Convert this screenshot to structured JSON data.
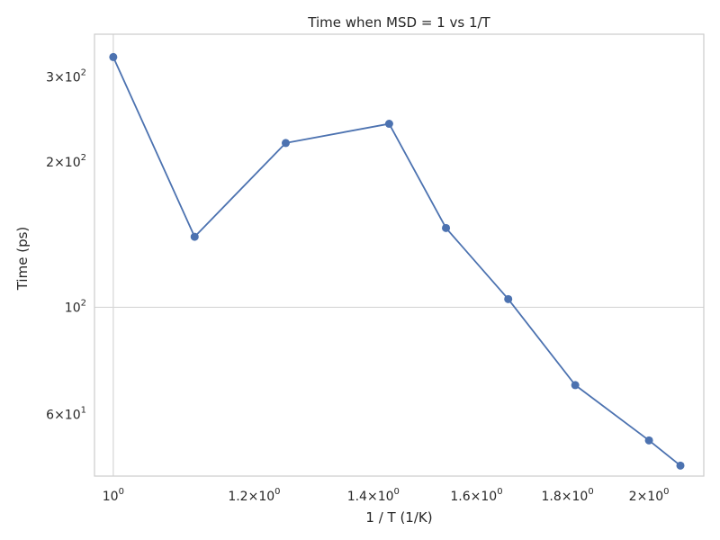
{
  "chart_data": {
    "type": "line",
    "title": "Time when MSD = 1 vs 1/T",
    "xlabel": "1 / T (1/K)",
    "ylabel": "Time (ps)",
    "xscale": "log",
    "yscale": "log",
    "xlim": [
      0.976,
      2.147
    ],
    "ylim": [
      44.7,
      368
    ],
    "grid": "major",
    "xticks": [
      {
        "value": 1.0,
        "mantissa": "",
        "exp": "0"
      },
      {
        "value": 1.2,
        "mantissa": "1.2",
        "exp": "0"
      },
      {
        "value": 1.4,
        "mantissa": "1.4",
        "exp": "0"
      },
      {
        "value": 1.6,
        "mantissa": "1.6",
        "exp": "0"
      },
      {
        "value": 1.8,
        "mantissa": "1.8",
        "exp": "0"
      },
      {
        "value": 2.0,
        "mantissa": "2",
        "exp": "0"
      }
    ],
    "yticks": [
      {
        "value": 300,
        "mantissa": "3",
        "exp": "2"
      },
      {
        "value": 200,
        "mantissa": "2",
        "exp": "2"
      },
      {
        "value": 100,
        "mantissa": "",
        "exp": "2"
      },
      {
        "value": 60,
        "mantissa": "6",
        "exp": "1"
      }
    ],
    "x_major": [
      1.0
    ],
    "y_major": [
      100
    ],
    "series": [
      {
        "color": "#4c72b0",
        "x": [
          1.0,
          1.111,
          1.25,
          1.429,
          1.538,
          1.667,
          1.818,
          2.0,
          2.083
        ],
        "y": [
          330,
          140,
          219,
          240,
          146,
          104,
          69,
          53,
          47
        ]
      }
    ]
  }
}
